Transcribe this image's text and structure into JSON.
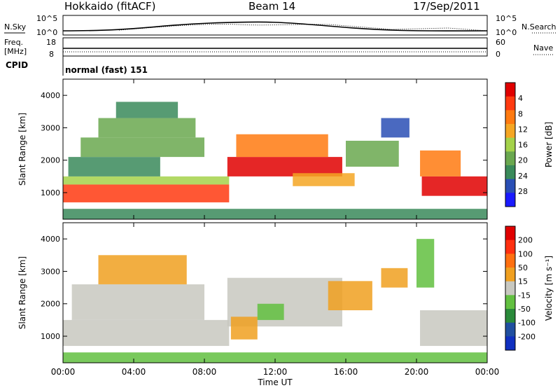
{
  "header": {
    "title": "Hokkaido (fitACF)",
    "beam": "Beam 14",
    "date": "17/Sep/2011"
  },
  "top_panels": {
    "nsky_label": "N.Sky",
    "nsearch_label": "N.Search",
    "nsky_ticks": [
      "10^5",
      "10^0"
    ],
    "nsearch_ticks": [
      "10^5",
      "10^0"
    ],
    "freq_label_1": "Freq.",
    "freq_label_2": "[MHz]",
    "freq_ticks": [
      "18",
      "8"
    ],
    "nave_label": "Nave",
    "nave_ticks": [
      "60",
      "0"
    ],
    "cpid_label": "CPID",
    "cpid_value": "normal (fast) 151"
  },
  "colors": {
    "power_scale": [
      "#1a1aff",
      "#2a4fb5",
      "#3a8a5a",
      "#6aa84f",
      "#a4d24a",
      "#f5a623",
      "#ff7a10",
      "#ff3a10",
      "#e00000"
    ],
    "velocity_scale": [
      "#1030c0",
      "#204fa0",
      "#2a8a3a",
      "#62c040",
      "#c8c8c0",
      "#f0a020",
      "#ff7010",
      "#ff3010",
      "#e00000"
    ]
  },
  "chart_data": [
    {
      "type": "heatmap",
      "name": "power",
      "ylabel": "Slant Range [km]",
      "xlabel": "",
      "ylim": [
        180,
        4500
      ],
      "yticks": [
        "1000",
        "2000",
        "3000",
        "4000"
      ],
      "ytick_values": [
        1000,
        2000,
        3000,
        4000
      ],
      "colorbar_label": "Power [dB]",
      "colorbar_ticks": [
        "4",
        "8",
        "12",
        "16",
        "20",
        "24",
        "28"
      ],
      "bands": [
        {
          "t0": 0.0,
          "t1": 9.4,
          "r0": 700,
          "r1": 1250,
          "level": 7
        },
        {
          "t0": 0.0,
          "t1": 9.4,
          "r0": 1250,
          "r1": 1500,
          "level": 4
        },
        {
          "t0": 0.3,
          "t1": 5.5,
          "r0": 1500,
          "r1": 2100,
          "level": 2
        },
        {
          "t0": 1.0,
          "t1": 8.0,
          "r0": 2100,
          "r1": 2700,
          "level": 3
        },
        {
          "t0": 2.0,
          "t1": 7.5,
          "r0": 2700,
          "r1": 3300,
          "level": 3
        },
        {
          "t0": 3.0,
          "t1": 6.5,
          "r0": 3300,
          "r1": 3800,
          "level": 2
        },
        {
          "t0": 9.3,
          "t1": 15.8,
          "r0": 1500,
          "r1": 2100,
          "level": 8
        },
        {
          "t0": 9.8,
          "t1": 15.0,
          "r0": 2100,
          "r1": 2800,
          "level": 6
        },
        {
          "t0": 13.0,
          "t1": 16.5,
          "r0": 1200,
          "r1": 1600,
          "level": 5
        },
        {
          "t0": 16.0,
          "t1": 19.0,
          "r0": 1800,
          "r1": 2600,
          "level": 3
        },
        {
          "t0": 18.0,
          "t1": 19.6,
          "r0": 2700,
          "r1": 3300,
          "level": 1
        },
        {
          "t0": 20.3,
          "t1": 24.0,
          "r0": 900,
          "r1": 1500,
          "level": 8
        },
        {
          "t0": 20.2,
          "t1": 22.5,
          "r0": 1500,
          "r1": 2300,
          "level": 6
        },
        {
          "t0": 0.0,
          "t1": 24.0,
          "r0": 180,
          "r1": 500,
          "level": 2
        }
      ]
    },
    {
      "type": "heatmap",
      "name": "velocity",
      "ylabel": "Slant Range [km]",
      "xlabel": "Time UT",
      "xlim": [
        0,
        24
      ],
      "xticks": [
        "00:00",
        "04:00",
        "08:00",
        "12:00",
        "16:00",
        "20:00",
        "00:00"
      ],
      "xtick_values": [
        0,
        4,
        8,
        12,
        16,
        20,
        24
      ],
      "ylim": [
        180,
        4500
      ],
      "yticks": [
        "1000",
        "2000",
        "3000",
        "4000"
      ],
      "ytick_values": [
        1000,
        2000,
        3000,
        4000
      ],
      "colorbar_label": "Velocity [m s⁻¹]",
      "colorbar_ticks": [
        "200",
        "100",
        "50",
        "15",
        "-15",
        "-50",
        "-100",
        "-200"
      ],
      "bands": [
        {
          "t0": 0.0,
          "t1": 9.4,
          "r0": 700,
          "r1": 1500,
          "level": 4
        },
        {
          "t0": 0.5,
          "t1": 8.0,
          "r0": 1500,
          "r1": 2600,
          "level": 4
        },
        {
          "t0": 2.0,
          "t1": 7.0,
          "r0": 2600,
          "r1": 3500,
          "level": 5
        },
        {
          "t0": 9.3,
          "t1": 15.8,
          "r0": 1300,
          "r1": 2800,
          "level": 4
        },
        {
          "t0": 9.5,
          "t1": 11.0,
          "r0": 900,
          "r1": 1600,
          "level": 5
        },
        {
          "t0": 11.0,
          "t1": 12.5,
          "r0": 1500,
          "r1": 2000,
          "level": 3
        },
        {
          "t0": 15.0,
          "t1": 17.5,
          "r0": 1800,
          "r1": 2700,
          "level": 5
        },
        {
          "t0": 18.0,
          "t1": 19.5,
          "r0": 2500,
          "r1": 3100,
          "level": 5
        },
        {
          "t0": 20.2,
          "t1": 24.0,
          "r0": 700,
          "r1": 1800,
          "level": 4
        },
        {
          "t0": 20.0,
          "t1": 21.0,
          "r0": 2500,
          "r1": 4000,
          "level": 3
        },
        {
          "t0": 0.0,
          "t1": 24.0,
          "r0": 180,
          "r1": 500,
          "level": 3
        }
      ]
    }
  ]
}
